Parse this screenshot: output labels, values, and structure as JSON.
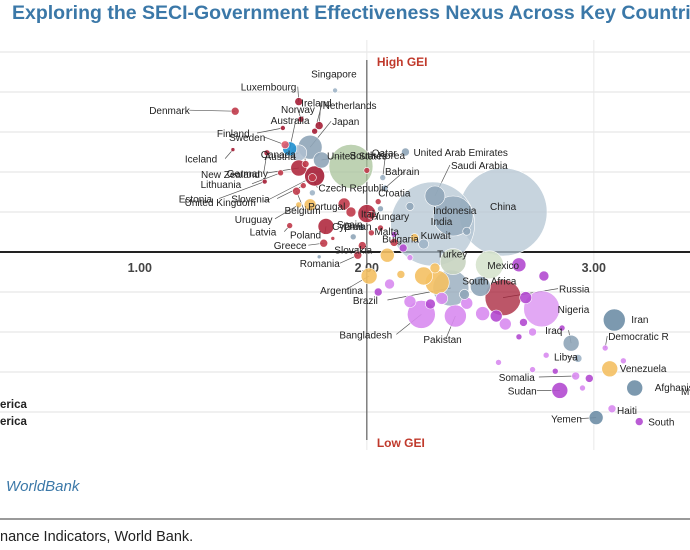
{
  "title": "Exploring the SECI-Government Effectiveness Nexus Across Key Countries",
  "brand": "WorldBank",
  "source": "nance Indicators, World Bank.",
  "chart_data": {
    "type": "scatter",
    "xlim": [
      0.45,
      3.45
    ],
    "ylim": [
      -2.45,
      2.6
    ],
    "x_ticks": [
      "1.00",
      "2.00",
      "3.00"
    ],
    "quadrant_labels": {
      "top": "High GEI",
      "bottom": "Low GEI"
    },
    "legend_partial": [
      "erica",
      "erica"
    ],
    "grid": "horizontal",
    "points": [
      {
        "label": "Singapore",
        "x": 1.86,
        "y": 2.02,
        "r": 2.5,
        "color": "#9fb4c6"
      },
      {
        "label": "Denmark",
        "x": 1.42,
        "y": 1.76,
        "r": 4,
        "color": "#c03a4a"
      },
      {
        "label": "Luxembourg",
        "x": 1.7,
        "y": 1.88,
        "r": 4,
        "color": "#a51e36"
      },
      {
        "label": "Finland",
        "x": 1.63,
        "y": 1.55,
        "r": 2.5,
        "color": "#a51e36"
      },
      {
        "label": "Norway",
        "x": 1.71,
        "y": 1.66,
        "r": 3,
        "color": "#a51e36"
      },
      {
        "label": "Ireland",
        "x": 1.79,
        "y": 1.58,
        "r": 4,
        "color": "#a51e36"
      },
      {
        "label": "Netherlands",
        "x": 1.77,
        "y": 1.51,
        "r": 3,
        "color": "#a51e36"
      },
      {
        "label": "Australia",
        "x": 1.66,
        "y": 1.29,
        "r": 7,
        "color": "#1f8fcf"
      },
      {
        "label": "Sweden",
        "x": 1.64,
        "y": 1.34,
        "r": 4,
        "color": "#e05a6a"
      },
      {
        "label": "Canada",
        "x": 1.7,
        "y": 1.24,
        "r": 8,
        "color": "#aebfcf"
      },
      {
        "label": "Japan",
        "x": 1.75,
        "y": 1.31,
        "r": 12,
        "color": "#8fa5b8"
      },
      {
        "label": "South Korea",
        "x": 1.8,
        "y": 1.15,
        "r": 8,
        "color": "#8fa5b8"
      },
      {
        "label": "Iceland",
        "x": 1.41,
        "y": 1.28,
        "r": 2,
        "color": "#a51e36"
      },
      {
        "label": "New Zealand",
        "x": 1.56,
        "y": 1.24,
        "r": 3,
        "color": "#a51e36"
      },
      {
        "label": "Austria",
        "x": 1.73,
        "y": 1.1,
        "r": 3.5,
        "color": "#c03a4a"
      },
      {
        "label": "Germany",
        "x": 1.7,
        "y": 1.05,
        "r": 8,
        "color": "#b02a3f"
      },
      {
        "label": "United States",
        "x": 1.93,
        "y": 1.07,
        "r": 22,
        "color": "#a8c399"
      },
      {
        "label": "Lithuania",
        "x": 1.62,
        "y": 0.99,
        "r": 3,
        "color": "#c03a4a"
      },
      {
        "label": "Czech Republic",
        "x": 1.76,
        "y": 0.93,
        "r": 4,
        "color": "#c03a4a"
      },
      {
        "label": "United Kingdom",
        "x": 1.77,
        "y": 0.95,
        "r": 10,
        "color": "#a51e36"
      },
      {
        "label": "Estonia",
        "x": 1.55,
        "y": 0.88,
        "r": 2.5,
        "color": "#a51e36"
      },
      {
        "label": "Slovenia",
        "x": 1.72,
        "y": 0.83,
        "r": 3,
        "color": "#c03a4a"
      },
      {
        "label": "Belgium",
        "x": 1.69,
        "y": 0.76,
        "r": 4,
        "color": "#c03a4a"
      },
      {
        "label": "Qatar",
        "x": 2.07,
        "y": 0.93,
        "r": 3,
        "color": "#9fb4c6"
      },
      {
        "label": "Bahrain",
        "x": 2.08,
        "y": 0.8,
        "r": 3,
        "color": "#9fb4c6"
      },
      {
        "label": "United Arab Emirates",
        "x": 2.17,
        "y": 1.25,
        "r": 4,
        "color": "#8fa5b8"
      },
      {
        "label": "Saudi Arabia",
        "x": 2.3,
        "y": 0.7,
        "r": 10,
        "color": "#8fa5b8"
      },
      {
        "label": "Portugal",
        "x": 1.75,
        "y": 0.59,
        "r": 6,
        "color": "#f4c063"
      },
      {
        "label": "Uruguay",
        "x": 1.7,
        "y": 0.59,
        "r": 3,
        "color": "#f4c063"
      },
      {
        "label": "Cyprus",
        "x": 1.9,
        "y": 0.6,
        "r": 6,
        "color": "#c03a4a"
      },
      {
        "label": "Croatia",
        "x": 2.05,
        "y": 0.63,
        "r": 3,
        "color": "#c03a4a"
      },
      {
        "label": "Spain",
        "x": 1.93,
        "y": 0.5,
        "r": 5,
        "color": "#c03a4a"
      },
      {
        "label": "Italy",
        "x": 2.0,
        "y": 0.48,
        "r": 9,
        "color": "#b02a3f"
      },
      {
        "label": "Hungary",
        "x": 2.02,
        "y": 0.46,
        "r": 4,
        "color": "#c03a4a"
      },
      {
        "label": "China",
        "x": 2.6,
        "y": 0.5,
        "r": 44,
        "color": "#b4c6d3"
      },
      {
        "label": "India",
        "x": 2.29,
        "y": 0.35,
        "r": 42,
        "color": "#b4c6d3"
      },
      {
        "label": "Indonesia",
        "x": 2.38,
        "y": 0.45,
        "r": 20,
        "color": "#8fa5b8"
      },
      {
        "label": "Latvia",
        "x": 1.66,
        "y": 0.33,
        "r": 3,
        "color": "#c03a4a"
      },
      {
        "label": "Poland",
        "x": 1.82,
        "y": 0.32,
        "r": 8,
        "color": "#b02a3f"
      },
      {
        "label": "Oman",
        "x": 1.98,
        "y": 0.31,
        "r": 3,
        "color": "#9fb4c6"
      },
      {
        "label": "Malta",
        "x": 2.06,
        "y": 0.3,
        "r": 3,
        "color": "#c03a4a"
      },
      {
        "label": "Greece",
        "x": 1.81,
        "y": 0.11,
        "r": 4,
        "color": "#c03a4a"
      },
      {
        "label": "Slovakia",
        "x": 1.98,
        "y": 0.08,
        "r": 4,
        "color": "#c03a4a"
      },
      {
        "label": "Bulgaria",
        "x": 2.12,
        "y": 0.12,
        "r": 4,
        "color": "#c03a4a"
      },
      {
        "label": "Kuwait",
        "x": 2.25,
        "y": 0.1,
        "r": 5,
        "color": "#9fb4c6"
      },
      {
        "label": "Romania",
        "x": 1.96,
        "y": -0.04,
        "r": 4,
        "color": "#c03a4a"
      },
      {
        "label": "Turkey",
        "x": 2.38,
        "y": -0.12,
        "r": 13,
        "color": "#c8d4c0"
      },
      {
        "label": "Mexico",
        "x": 2.54,
        "y": -0.16,
        "r": 14,
        "color": "#d6e3cd"
      },
      {
        "label": "Argentina",
        "x": 2.01,
        "y": -0.3,
        "r": 8,
        "color": "#f4c063"
      },
      {
        "label": "South Africa",
        "x": 2.5,
        "y": -0.43,
        "r": 10,
        "color": "#8fa5b8"
      },
      {
        "label": "Russia",
        "x": 2.6,
        "y": -0.57,
        "r": 18,
        "color": "#a51e36"
      },
      {
        "label": "Brazil",
        "x": 2.37,
        "y": -0.45,
        "r": 18,
        "color": "#8fa5b8"
      },
      {
        "label": "Nigeria",
        "x": 2.77,
        "y": -0.71,
        "r": 18,
        "color": "#d88bf0"
      },
      {
        "label": "Bangladesh",
        "x": 2.24,
        "y": -0.78,
        "r": 14,
        "color": "#d88bf0"
      },
      {
        "label": "Pakistan",
        "x": 2.39,
        "y": -0.8,
        "r": 11,
        "color": "#d88bf0"
      },
      {
        "label": "Iran",
        "x": 3.09,
        "y": -0.85,
        "r": 11,
        "color": "#6e8ea6"
      },
      {
        "label": "Iraq",
        "x": 2.9,
        "y": -1.14,
        "r": 8,
        "color": "#8fa5b8"
      },
      {
        "label": "Libya",
        "x": 2.93,
        "y": -1.33,
        "r": 4,
        "color": "#9fb4c6"
      },
      {
        "label": "Democratic Republic of the Congo",
        "x": 3.05,
        "y": -1.2,
        "r": 3,
        "color": "#d88bf0"
      },
      {
        "label": "Venezuela",
        "x": 3.07,
        "y": -1.46,
        "r": 8,
        "color": "#f4c063"
      },
      {
        "label": "Somalia",
        "x": 2.92,
        "y": -1.55,
        "r": 4,
        "color": "#d88bf0"
      },
      {
        "label": "Sudan",
        "x": 2.85,
        "y": -1.73,
        "r": 8,
        "color": "#b24ad0"
      },
      {
        "label": "Yemen",
        "x": 3.01,
        "y": -2.07,
        "r": 7,
        "color": "#6e8ea6"
      },
      {
        "label": "Haiti",
        "x": 3.08,
        "y": -1.96,
        "r": 4,
        "color": "#d88bf0"
      },
      {
        "label": "Afghanistan",
        "x": 3.18,
        "y": -1.7,
        "r": 8,
        "color": "#6e8ea6"
      },
      {
        "label": "South Sudan",
        "x": 3.2,
        "y": -2.12,
        "r": 4,
        "color": "#b24ad0"
      }
    ],
    "filler_points": [
      {
        "x": 2.0,
        "y": 1.02,
        "r": 3,
        "color": "#c03a4a"
      },
      {
        "x": 2.06,
        "y": 0.54,
        "r": 3,
        "color": "#8fa5b8"
      },
      {
        "x": 2.12,
        "y": 0.22,
        "r": 3,
        "color": "#b24ad0"
      },
      {
        "x": 2.16,
        "y": 0.05,
        "r": 4,
        "color": "#b24ad0"
      },
      {
        "x": 2.09,
        "y": -0.04,
        "r": 7,
        "color": "#f4c063"
      },
      {
        "x": 2.19,
        "y": -0.07,
        "r": 3,
        "color": "#d88bf0"
      },
      {
        "x": 2.3,
        "y": -0.2,
        "r": 5,
        "color": "#f4c063"
      },
      {
        "x": 2.1,
        "y": -0.4,
        "r": 5,
        "color": "#d88bf0"
      },
      {
        "x": 2.15,
        "y": -0.28,
        "r": 4,
        "color": "#f4c063"
      },
      {
        "x": 2.25,
        "y": -0.3,
        "r": 9,
        "color": "#f4c063"
      },
      {
        "x": 2.31,
        "y": -0.38,
        "r": 12,
        "color": "#f4c063"
      },
      {
        "x": 2.05,
        "y": -0.5,
        "r": 4,
        "color": "#b24ad0"
      },
      {
        "x": 2.19,
        "y": -0.62,
        "r": 6,
        "color": "#d88bf0"
      },
      {
        "x": 2.28,
        "y": -0.65,
        "r": 5,
        "color": "#b24ad0"
      },
      {
        "x": 2.33,
        "y": -0.58,
        "r": 6,
        "color": "#d88bf0"
      },
      {
        "x": 2.44,
        "y": -0.64,
        "r": 6,
        "color": "#d88bf0"
      },
      {
        "x": 2.51,
        "y": -0.77,
        "r": 7,
        "color": "#d88bf0"
      },
      {
        "x": 2.57,
        "y": -0.8,
        "r": 6,
        "color": "#b24ad0"
      },
      {
        "x": 2.61,
        "y": -0.9,
        "r": 6,
        "color": "#d88bf0"
      },
      {
        "x": 2.69,
        "y": -0.88,
        "r": 4,
        "color": "#b24ad0"
      },
      {
        "x": 2.73,
        "y": -1.0,
        "r": 4,
        "color": "#d88bf0"
      },
      {
        "x": 2.67,
        "y": -1.06,
        "r": 3,
        "color": "#b24ad0"
      },
      {
        "x": 2.79,
        "y": -1.29,
        "r": 3,
        "color": "#d88bf0"
      },
      {
        "x": 2.67,
        "y": -0.16,
        "r": 7,
        "color": "#b24ad0"
      },
      {
        "x": 2.78,
        "y": -0.3,
        "r": 5,
        "color": "#b24ad0"
      },
      {
        "x": 2.7,
        "y": -0.57,
        "r": 6,
        "color": "#b24ad0"
      },
      {
        "x": 2.73,
        "y": -1.47,
        "r": 3,
        "color": "#d88bf0"
      },
      {
        "x": 2.58,
        "y": -1.38,
        "r": 3,
        "color": "#d88bf0"
      },
      {
        "x": 2.83,
        "y": -1.49,
        "r": 3,
        "color": "#b24ad0"
      },
      {
        "x": 2.95,
        "y": -1.7,
        "r": 3,
        "color": "#d88bf0"
      },
      {
        "x": 2.98,
        "y": -1.58,
        "r": 4,
        "color": "#b24ad0"
      },
      {
        "x": 2.43,
        "y": -0.53,
        "r": 5,
        "color": "#8fa5b8"
      },
      {
        "x": 2.21,
        "y": 0.18,
        "r": 4,
        "color": "#f4c063"
      },
      {
        "x": 1.79,
        "y": -0.06,
        "r": 2,
        "color": "#8fa5b8"
      },
      {
        "x": 1.85,
        "y": 0.17,
        "r": 2,
        "color": "#c03a4a"
      },
      {
        "x": 2.02,
        "y": 0.24,
        "r": 3,
        "color": "#c03a4a"
      },
      {
        "x": 1.94,
        "y": 0.19,
        "r": 3,
        "color": "#8fa5b8"
      },
      {
        "x": 2.19,
        "y": 0.57,
        "r": 4,
        "color": "#8fa5b8"
      },
      {
        "x": 1.76,
        "y": 0.74,
        "r": 3,
        "color": "#9fb4c6"
      },
      {
        "x": 2.44,
        "y": 0.26,
        "r": 4,
        "color": "#8fa5b8"
      },
      {
        "x": 2.86,
        "y": -0.95,
        "r": 3,
        "color": "#b24ad0"
      },
      {
        "x": 3.13,
        "y": -1.36,
        "r": 3,
        "color": "#d88bf0"
      }
    ]
  },
  "labels": [
    {
      "name": "Singapore",
      "text": "Singapore"
    },
    {
      "name": "Denmark",
      "text": "Denmark"
    },
    {
      "name": "Luxembourg",
      "text": "Luxembourg"
    },
    {
      "name": "Finland",
      "text": "Finland"
    },
    {
      "name": "Norway",
      "text": "Norway"
    },
    {
      "name": "Ireland",
      "text": "Ireland"
    },
    {
      "name": "Netherlands",
      "text": "Netherlands"
    },
    {
      "name": "Australia",
      "text": "Australia"
    },
    {
      "name": "Japan",
      "text": "Japan"
    },
    {
      "name": "Sweden",
      "text": "Sweden"
    },
    {
      "name": "Canada",
      "text": "Canada"
    },
    {
      "name": "South Korea",
      "text": "South Korea"
    },
    {
      "name": "United Arab Emirates",
      "text": "United Arab Emirates"
    },
    {
      "name": "Iceland",
      "text": "Iceland"
    },
    {
      "name": "New Zealand",
      "text": "New Zealand"
    },
    {
      "name": "Austria",
      "text": "Austria"
    },
    {
      "name": "United States",
      "text": "United States"
    },
    {
      "name": "Qatar",
      "text": "Qatar"
    },
    {
      "name": "Germany",
      "text": "Germany"
    },
    {
      "name": "Bahrain",
      "text": "Bahrain"
    },
    {
      "name": "Saudi Arabia",
      "text": "Saudi Arabia"
    },
    {
      "name": "Lithuania",
      "text": "Lithuania"
    },
    {
      "name": "Czech Republic",
      "text": "Czech Republic"
    },
    {
      "name": "Estonia",
      "text": "Estonia"
    },
    {
      "name": "United Kingdom",
      "text": "United Kingdom"
    },
    {
      "name": "Belgium",
      "text": "Belgium"
    },
    {
      "name": "Cyprus",
      "text": "Cyprus"
    },
    {
      "name": "Croatia",
      "text": "Croatia"
    },
    {
      "name": "Slovenia",
      "text": "Slovenia"
    },
    {
      "name": "Portugal",
      "text": "Portugal"
    },
    {
      "name": "China",
      "text": "China"
    },
    {
      "name": "Uruguay",
      "text": "Uruguay"
    },
    {
      "name": "Spain",
      "text": "Spain"
    },
    {
      "name": "Italy",
      "text": "Italy"
    },
    {
      "name": "Hungary",
      "text": "Hungary"
    },
    {
      "name": "Indonesia",
      "text": "Indonesia"
    },
    {
      "name": "Latvia",
      "text": "Latvia"
    },
    {
      "name": "Oman",
      "text": "Oman"
    },
    {
      "name": "Malta",
      "text": "Malta"
    },
    {
      "name": "India",
      "text": "India"
    },
    {
      "name": "Poland",
      "text": "Poland"
    },
    {
      "name": "Bulgaria",
      "text": "Bulgaria"
    },
    {
      "name": "Greece",
      "text": "Greece"
    },
    {
      "name": "Slovakia",
      "text": "Slovakia"
    },
    {
      "name": "Kuwait",
      "text": "Kuwait"
    },
    {
      "name": "Romania",
      "text": "Romania"
    },
    {
      "name": "Turkey",
      "text": "Turkey"
    },
    {
      "name": "Mexico",
      "text": "Mexico"
    },
    {
      "name": "South Africa",
      "text": "South Africa"
    },
    {
      "name": "Argentina",
      "text": "Argentina"
    },
    {
      "name": "Russia",
      "text": "Russia"
    },
    {
      "name": "Brazil",
      "text": "Brazil"
    },
    {
      "name": "Nigeria",
      "text": "Nigeria"
    },
    {
      "name": "Bangladesh",
      "text": "Bangladesh"
    },
    {
      "name": "Iran",
      "text": "Iran"
    },
    {
      "name": "Pakistan",
      "text": "Pakistan"
    },
    {
      "name": "Iraq",
      "text": "Iraq"
    },
    {
      "name": "Democratic Republic of the Congo",
      "text": "Democratic R"
    },
    {
      "name": "Libya",
      "text": "Libya"
    },
    {
      "name": "Venezuela",
      "text": "Venezuela"
    },
    {
      "name": "Somalia",
      "text": "Somalia"
    },
    {
      "name": "Afghanistan",
      "text": "Afghanis"
    },
    {
      "name": "Sudan",
      "text": "Sudan"
    },
    {
      "name": "Yemen",
      "text": "Yemen"
    },
    {
      "name": "Haiti",
      "text": "Haiti"
    },
    {
      "name": "South Sudan",
      "text": "South"
    },
    {
      "name": "cut-label",
      "text": "M"
    }
  ]
}
